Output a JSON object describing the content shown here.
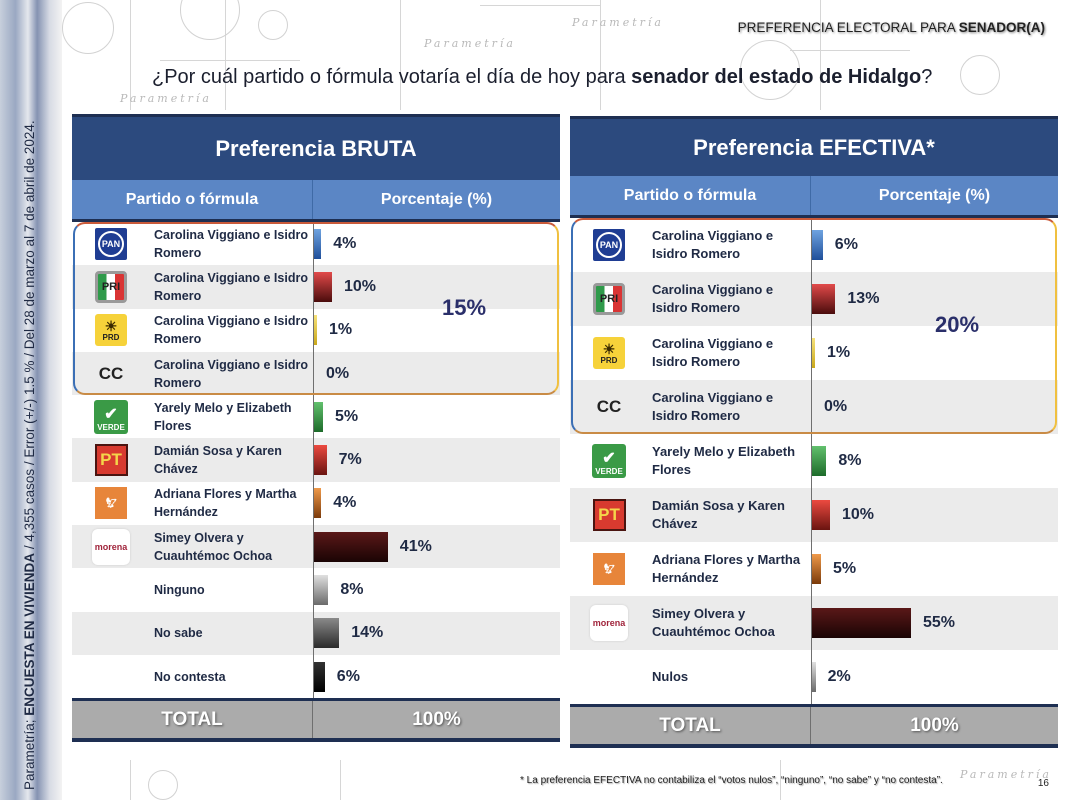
{
  "header": {
    "section_label_prefix": "PREFERENCIA ELECTORAL PARA ",
    "section_label_bold": "SENADOR(A)",
    "question_prefix": "¿Por cuál partido o fórmula votaría el día de hoy para ",
    "question_bold": "senador del estado de Hidalgo",
    "question_suffix": "?"
  },
  "sidebar": {
    "source_prefix": "Parametría; ",
    "source_bold": "ENCUESTA EN VIVIENDA",
    "source_rest": " / 4,355 casos / Error (+/-) 1.5 % / Del 28 de marzo al 7 de abril de 2024."
  },
  "watermark": "Parametría",
  "colors": {
    "title_bar": "#2c4a7e",
    "header_bar": "#5b86c5",
    "total_bar": "#ababab",
    "PAN": "#2a64b0",
    "PRI": "#c8262b",
    "PRD": "#e8c82a",
    "CC": "#1f2a44",
    "PVEM": "#2f8f3e",
    "PT": "#d0302a",
    "MC": "#e07a2a",
    "MORENA": "#3a0d0d",
    "Ninguno": "#a8a8a8",
    "No sabe": "#5a5a5a",
    "No contesta": "#111111",
    "Nulos": "#a8a8a8"
  },
  "bruta": {
    "title": "Preferencia BRUTA",
    "col_party": "Partido o fórmula",
    "col_pct": "Porcentaje (%)",
    "coalition_total": "15%",
    "total_label": "TOTAL",
    "total_value": "100%",
    "rows": [
      {
        "logo": "PAN",
        "name": "Carolina Viggiano e Isidro Romero",
        "value": 4,
        "label": "4%"
      },
      {
        "logo": "PRI",
        "name": "Carolina Viggiano e Isidro Romero",
        "value": 10,
        "label": "10%"
      },
      {
        "logo": "PRD",
        "name": "Carolina Viggiano e Isidro Romero",
        "value": 1,
        "label": "1%"
      },
      {
        "logo": "CC",
        "name": "Carolina Viggiano e Isidro Romero",
        "value": 0,
        "label": "0%"
      },
      {
        "logo": "VERDE",
        "name": "Yarely Melo y Elizabeth Flores",
        "value": 5,
        "label": "5%"
      },
      {
        "logo": "PT",
        "name": "Damián Sosa y Karen Chávez",
        "value": 7,
        "label": "7%"
      },
      {
        "logo": "MC",
        "name": "Adriana Flores y Martha Hernández",
        "value": 4,
        "label": "4%"
      },
      {
        "logo": "morena",
        "name": "Simey Olvera y Cuauhtémoc Ochoa",
        "value": 41,
        "label": "41%"
      },
      {
        "logo": "",
        "name": "Ninguno",
        "value": 8,
        "label": "8%"
      },
      {
        "logo": "",
        "name": "No sabe",
        "value": 14,
        "label": "14%"
      },
      {
        "logo": "",
        "name": "No contesta",
        "value": 6,
        "label": "6%"
      }
    ]
  },
  "efectiva": {
    "title": "Preferencia EFECTIVA*",
    "col_party": "Partido o fórmula",
    "col_pct": "Porcentaje (%)",
    "coalition_total": "20%",
    "total_label": "TOTAL",
    "total_value": "100%",
    "rows": [
      {
        "logo": "PAN",
        "name": "Carolina Viggiano e Isidro Romero",
        "value": 6,
        "label": "6%"
      },
      {
        "logo": "PRI",
        "name": "Carolina Viggiano e Isidro Romero",
        "value": 13,
        "label": "13%"
      },
      {
        "logo": "PRD",
        "name": "Carolina Viggiano e Isidro Romero",
        "value": 1,
        "label": "1%"
      },
      {
        "logo": "CC",
        "name": "Carolina Viggiano e Isidro Romero",
        "value": 0,
        "label": "0%"
      },
      {
        "logo": "VERDE",
        "name": "Yarely Melo y Elizabeth Flores",
        "value": 8,
        "label": "8%"
      },
      {
        "logo": "PT",
        "name": "Damián Sosa y Karen Chávez",
        "value": 10,
        "label": "10%"
      },
      {
        "logo": "MC",
        "name": "Adriana Flores y Martha Hernández",
        "value": 5,
        "label": "5%"
      },
      {
        "logo": "morena",
        "name": "Simey Olvera y Cuauhtémoc Ochoa",
        "value": 55,
        "label": "55%"
      },
      {
        "logo": "",
        "name": "Nulos",
        "value": 2,
        "label": "2%"
      }
    ]
  },
  "footer": {
    "footnote": "* La preferencia EFECTIVA no contabiliza el  “votos nulos”, “ninguno”, “no sabe” y “no contesta”.",
    "page_number": "16"
  },
  "chart_data": [
    {
      "type": "bar",
      "orientation": "horizontal",
      "title": "Preferencia BRUTA",
      "subtitle": "¿Por cuál partido o fórmula votaría el día de hoy para senador del estado de Hidalgo?",
      "xlabel": "Porcentaje (%)",
      "ylabel": "Partido o fórmula",
      "categories": [
        "PAN - Carolina Viggiano e Isidro Romero",
        "PRI - Carolina Viggiano e Isidro Romero",
        "PRD - Carolina Viggiano e Isidro Romero",
        "CC - Carolina Viggiano e Isidro Romero",
        "VERDE - Yarely Melo y Elizabeth Flores",
        "PT - Damián Sosa y Karen Chávez",
        "MC - Adriana Flores y Martha Hernández",
        "MORENA - Simey Olvera y Cuauhtémoc Ochoa",
        "Ninguno",
        "No sabe",
        "No contesta"
      ],
      "values": [
        4,
        10,
        1,
        0,
        5,
        7,
        4,
        41,
        8,
        14,
        6
      ],
      "annotations": [
        {
          "group": "PAN+PRI+PRD+CC",
          "value": "15%"
        }
      ],
      "total": "100%"
    },
    {
      "type": "bar",
      "orientation": "horizontal",
      "title": "Preferencia EFECTIVA*",
      "subtitle": "¿Por cuál partido o fórmula votaría el día de hoy para senador del estado de Hidalgo?",
      "xlabel": "Porcentaje (%)",
      "ylabel": "Partido o fórmula",
      "categories": [
        "PAN - Carolina Viggiano e Isidro Romero",
        "PRI - Carolina Viggiano e Isidro Romero",
        "PRD - Carolina Viggiano e Isidro Romero",
        "CC - Carolina Viggiano e Isidro Romero",
        "VERDE - Yarely Melo y Elizabeth Flores",
        "PT - Damián Sosa y Karen Chávez",
        "MC - Adriana Flores y Martha Hernández",
        "MORENA - Simey Olvera y Cuauhtémoc Ochoa",
        "Nulos"
      ],
      "values": [
        6,
        13,
        1,
        0,
        8,
        10,
        5,
        55,
        2
      ],
      "annotations": [
        {
          "group": "PAN+PRI+PRD+CC",
          "value": "20%"
        }
      ],
      "total": "100%",
      "note": "* La preferencia EFECTIVA no contabiliza el “votos nulos”, “ninguno”, “no sabe” y “no contesta”."
    }
  ]
}
